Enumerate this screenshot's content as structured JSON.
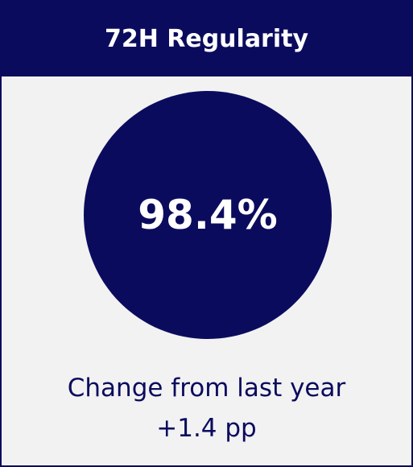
{
  "header": {
    "title": "72H Regularity"
  },
  "kpi": {
    "value": "98.4%",
    "change": "Change from last year +1.4 pp"
  }
}
